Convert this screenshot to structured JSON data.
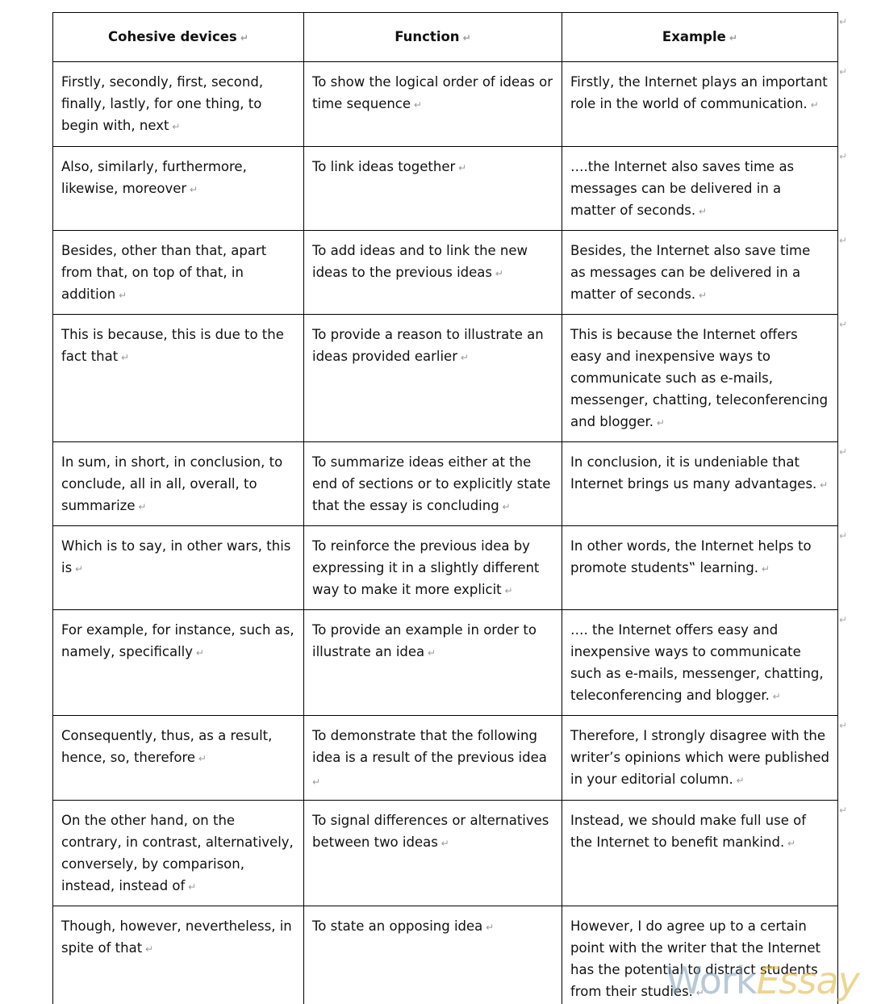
{
  "table": {
    "header": [
      "Cohesive devices",
      "Function",
      "Example"
    ],
    "rows": [
      [
        "Firstly, secondly, first, second, finally, lastly, for one thing, to begin with, next",
        "To show the logical order of ideas or time sequence",
        "Firstly, the Internet plays an important role in the world of communication."
      ],
      [
        "Also, similarly, furthermore, likewise, moreover",
        "To link ideas together",
        "….the Internet also saves time as messages can be delivered in a matter of seconds."
      ],
      [
        "Besides, other than that, apart from that, on top of that, in addition",
        "To add ideas and to link the new ideas to the previous ideas",
        "Besides, the Internet also save time as messages can be delivered in a matter of seconds."
      ],
      [
        "This is because, this is due to the fact that",
        "To provide a reason to illustrate an ideas provided earlier",
        "This is because the Internet offers easy and inexpensive ways to communicate such as e-mails, messenger, chatting, teleconferencing and blogger."
      ],
      [
        "In sum, in short, in conclusion, to conclude, all in all, overall, to summarize",
        "To summarize ideas either at the end of sections or to explicitly state that the essay is concluding",
        "In conclusion, it is undeniable that Internet brings us many advantages."
      ],
      [
        "Which is to say, in other wars, this is",
        "To reinforce the previous idea by expressing it in a slightly different way to make it more explicit",
        "In other words, the Internet helps to promote students‟ learning."
      ],
      [
        "For example, for instance, such as, namely, specifically",
        "To provide an example in order to illustrate an idea",
        "…. the Internet offers easy and inexpensive ways to communicate such as e-mails, messenger, chatting, teleconferencing and blogger."
      ],
      [
        "Consequently, thus, as a result, hence, so, therefore",
        "To demonstrate that the following idea is a result of the previous idea",
        "Therefore, I strongly disagree with the writer’s opinions which were published in your editorial column."
      ],
      [
        "On the other hand, on the contrary, in contrast, alternatively, conversely, by comparison, instead, instead of",
        "To signal differences or alternatives between two ideas",
        "Instead, we should make full use of the Internet to benefit mankind."
      ],
      [
        "Though, however, nevertheless, in spite of that",
        "To state an opposing idea",
        "However, I do agree up to a certain point with the writer that the Internet has the potential to distract students from their studies."
      ]
    ]
  },
  "watermark": [
    "Work",
    "Essay"
  ]
}
